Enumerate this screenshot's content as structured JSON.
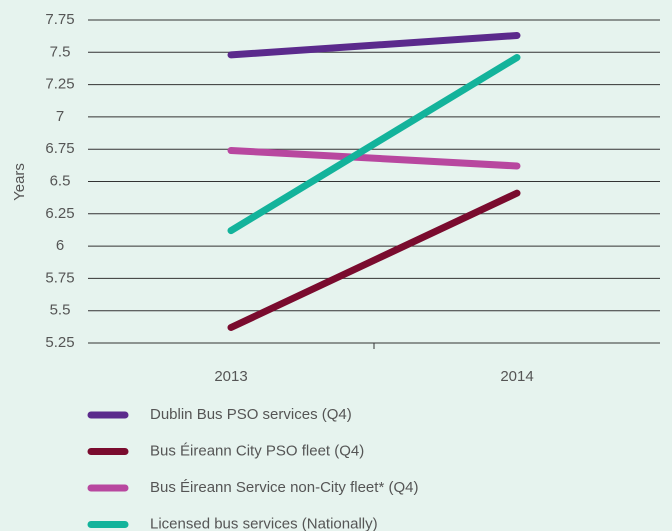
{
  "chart_data": {
    "type": "line",
    "y_label": "Years",
    "categories": [
      "2013",
      "2014"
    ],
    "series": [
      {
        "name": "Dublin Bus PSO services (Q4)",
        "color": "#5b2a8c",
        "values": [
          7.48,
          7.63
        ]
      },
      {
        "name": "Bus Éireann City PSO fleet (Q4)",
        "color": "#7a0b2e",
        "values": [
          5.37,
          6.41
        ]
      },
      {
        "name": "Bus Éireann Service non-City fleet* (Q4)",
        "color": "#b8479f",
        "values": [
          6.74,
          6.62
        ]
      },
      {
        "name": "Licensed bus services (Nationally)",
        "color": "#13b39b",
        "values": [
          6.12,
          7.46
        ]
      }
    ],
    "ylim": [
      5.25,
      7.75
    ],
    "yticks": [
      5.25,
      5.5,
      5.75,
      6,
      6.25,
      6.5,
      6.75,
      7,
      7.25,
      7.5,
      7.75
    ],
    "grid": true
  }
}
